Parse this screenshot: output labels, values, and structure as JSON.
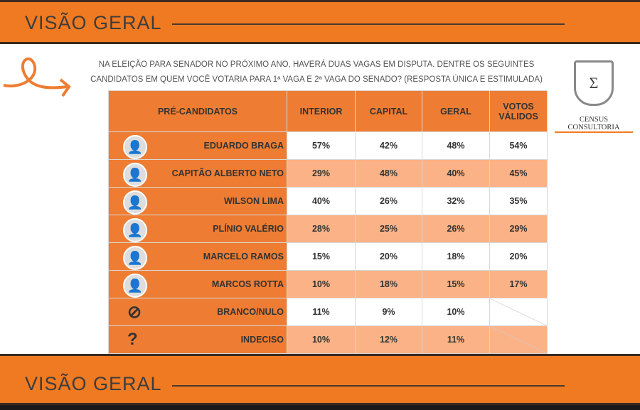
{
  "header": {
    "title": "VISÃO GERAL"
  },
  "footer": {
    "title": "VISÃO GERAL"
  },
  "question": {
    "line1": "NA ELEIÇÃO PARA SENADOR NO PRÓXIMO ANO, HAVERÁ DUAS VAGAS EM DISPUTA. DENTRE OS SEGUINTES",
    "line2": "CANDIDATOS EM QUEM VOCÊ VOTARIA PARA 1ª VAGA E 2ª VAGA DO SENADO? (RESPOSTA ÚNICA E ESTIMULADA)"
  },
  "logo": {
    "name": "CENSUS CONSULTORIA",
    "seal": "CENSUS"
  },
  "table": {
    "headers": [
      "PRÉ-CANDIDATOS",
      "INTERIOR",
      "CAPITAL",
      "GERAL",
      "VOTOS VÁLIDOS"
    ],
    "rows": [
      {
        "name": "EDUARDO BRAGA",
        "v": [
          "57%",
          "42%",
          "48%",
          "54%"
        ]
      },
      {
        "name": "CAPITÃO ALBERTO NETO",
        "v": [
          "29%",
          "48%",
          "40%",
          "45%"
        ]
      },
      {
        "name": "WILSON LIMA",
        "v": [
          "40%",
          "26%",
          "32%",
          "35%"
        ]
      },
      {
        "name": "PLÍNIO VALÉRIO",
        "v": [
          "28%",
          "25%",
          "26%",
          "29%"
        ]
      },
      {
        "name": "MARCELO RAMOS",
        "v": [
          "15%",
          "20%",
          "18%",
          "20%"
        ]
      },
      {
        "name": "MARCOS ROTTA",
        "v": [
          "10%",
          "18%",
          "15%",
          "17%"
        ]
      },
      {
        "name": "BRANCO/NULO",
        "v": [
          "11%",
          "9%",
          "10%",
          ""
        ]
      },
      {
        "name": "INDECISO",
        "v": [
          "10%",
          "12%",
          "11%",
          ""
        ]
      }
    ]
  }
}
